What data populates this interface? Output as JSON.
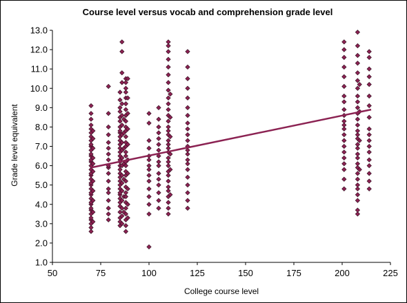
{
  "chart_data": {
    "type": "scatter",
    "title": "Course level versus vocab and comprehension grade level",
    "xlabel": "College course level",
    "ylabel": "Grade level equivalent",
    "xlim": [
      50,
      225
    ],
    "ylim": [
      1.0,
      13.0
    ],
    "xticks": [
      50,
      75,
      100,
      125,
      150,
      175,
      200,
      225
    ],
    "yticks": [
      "1.0",
      "2.0",
      "3.0",
      "4.0",
      "5.0",
      "6.0",
      "7.0",
      "8.0",
      "9.0",
      "10.0",
      "11.0",
      "12.0",
      "13.0"
    ],
    "marker_color": "#8b2252",
    "trendline": {
      "color": "#8b2252",
      "x": [
        70,
        215
      ],
      "y": [
        5.9,
        8.9
      ]
    },
    "columns": [
      {
        "x": 70,
        "y": [
          2.6,
          2.8,
          3.0,
          3.2,
          3.3,
          3.5,
          3.7,
          3.8,
          4.0,
          4.1,
          4.3,
          4.5,
          4.6,
          4.8,
          5.0,
          5.1,
          5.3,
          5.5,
          5.6,
          5.8,
          6.0,
          6.2,
          6.3,
          6.5,
          6.6,
          6.8,
          7.0,
          7.1,
          7.3,
          7.5,
          7.7,
          7.9,
          8.1,
          8.4,
          8.7,
          9.1
        ]
      },
      {
        "x": 71,
        "y": [
          3.1,
          3.6,
          4.2,
          4.7,
          5.2,
          5.7,
          6.1,
          6.4,
          6.9,
          7.4,
          7.8
        ]
      },
      {
        "x": 79,
        "y": [
          3.2,
          3.5,
          3.8,
          4.2,
          4.6,
          4.8,
          5.2,
          5.6,
          5.9,
          6.0,
          6.3,
          6.6,
          6.9,
          7.2,
          7.6,
          8.0,
          8.7,
          10.1
        ]
      },
      {
        "x": 85,
        "y": [
          2.9,
          3.1,
          3.3,
          3.6,
          3.9,
          4.1,
          4.3,
          4.5,
          4.6,
          4.8,
          5.0,
          5.2,
          5.4,
          5.6,
          5.8,
          6.0,
          6.2,
          6.3,
          6.5,
          6.7,
          6.9,
          7.1,
          7.3,
          7.5,
          7.7,
          7.8,
          8.0,
          8.3,
          8.5,
          8.8,
          9.0,
          9.4,
          9.8
        ]
      },
      {
        "x": 86,
        "y": [
          3.0,
          3.4,
          3.8,
          4.2,
          4.7,
          5.1,
          5.5,
          6.0,
          6.4,
          6.8,
          7.2,
          7.6,
          8.1,
          8.6,
          9.2,
          10.3,
          10.8,
          11.9,
          12.4
        ]
      },
      {
        "x": 87,
        "y": [
          3.6,
          4.4,
          5.3,
          6.1,
          6.9,
          7.7,
          8.4
        ]
      },
      {
        "x": 88,
        "y": [
          2.6,
          2.9,
          3.2,
          3.5,
          3.8,
          4.1,
          4.4,
          4.6,
          4.9,
          5.2,
          5.5,
          5.7,
          6.0,
          6.2,
          6.5,
          6.7,
          7.0,
          7.2,
          7.5,
          7.8,
          8.0,
          8.3,
          8.6,
          8.9,
          9.2,
          9.5,
          9.8,
          10.0,
          10.3,
          10.5
        ]
      },
      {
        "x": 89,
        "y": [
          3.3,
          4.0,
          4.8,
          5.6,
          6.3,
          7.1,
          7.9,
          8.7,
          9.5,
          10.5
        ]
      },
      {
        "x": 100,
        "y": [
          1.8,
          3.5,
          4.0,
          4.4,
          4.8,
          5.2,
          5.5,
          5.8,
          6.0,
          6.3,
          6.5,
          6.9,
          7.3,
          8.2,
          8.7
        ]
      },
      {
        "x": 105,
        "y": [
          3.8,
          4.2,
          4.6,
          5.0,
          5.3,
          5.6,
          6.0,
          6.2,
          6.5,
          6.8,
          7.1,
          7.4,
          7.7,
          8.0,
          8.4,
          9.0
        ]
      },
      {
        "x": 110,
        "y": [
          3.5,
          3.8,
          4.1,
          4.4,
          4.7,
          4.9,
          5.2,
          5.5,
          5.7,
          6.0,
          6.2,
          6.4,
          6.7,
          6.9,
          7.1,
          7.3,
          7.6,
          7.8,
          8.0,
          8.3,
          8.6,
          8.9,
          9.2,
          9.5,
          9.9,
          10.3,
          10.7,
          11.1,
          11.5,
          11.9,
          12.2,
          12.4
        ]
      },
      {
        "x": 111,
        "y": [
          4.5,
          5.8,
          6.6,
          7.5,
          8.5,
          9.7
        ]
      },
      {
        "x": 120,
        "y": [
          3.8,
          4.2,
          4.6,
          5.0,
          5.4,
          5.8,
          6.1,
          6.3,
          6.6,
          6.8,
          7.0,
          7.3,
          7.6,
          7.9,
          8.2,
          8.6,
          9.0,
          9.5,
          10.0,
          10.5,
          11.1,
          11.9
        ]
      },
      {
        "x": 201,
        "y": [
          4.8,
          5.3,
          5.8,
          6.1,
          6.4,
          6.7,
          7.0,
          7.3,
          7.6,
          7.9,
          8.1,
          8.3,
          8.6,
          8.9,
          9.3,
          9.6,
          10.1,
          10.6,
          11.1,
          11.6,
          12.0,
          12.4
        ]
      },
      {
        "x": 208,
        "y": [
          3.5,
          3.7,
          4.2,
          4.5,
          4.8,
          5.0,
          5.3,
          5.6,
          5.9,
          6.1,
          6.4,
          6.6,
          6.9,
          7.1,
          7.4,
          7.6,
          7.8,
          8.1,
          8.4,
          8.7,
          9.0,
          9.3,
          9.6,
          10.0,
          10.4,
          10.8,
          11.3,
          11.7,
          12.2,
          12.9
        ]
      },
      {
        "x": 209,
        "y": [
          5.8,
          7.3,
          8.8,
          10.2
        ]
      },
      {
        "x": 214,
        "y": [
          4.8,
          5.2,
          5.6,
          6.0,
          6.3,
          6.7,
          7.0,
          7.3,
          7.6,
          7.9,
          8.5,
          9.1,
          9.6,
          10.2,
          10.6,
          11.0,
          11.6,
          11.9
        ]
      }
    ]
  }
}
